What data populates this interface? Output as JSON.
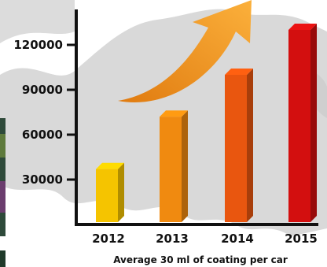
{
  "chart_data": {
    "type": "bar",
    "categories": [
      "2012",
      "2013",
      "2014",
      "2015"
    ],
    "values": [
      37000,
      72000,
      100000,
      130000
    ],
    "title": "",
    "xlabel": "Average 30 ml of coating per car",
    "ylabel": "",
    "yticks": [
      "30000",
      "60000",
      "90000",
      "120000"
    ],
    "ylim": [
      0,
      150000
    ],
    "grid": false,
    "legend": "none",
    "bar_colors": [
      "#f5c400",
      "#f08a10",
      "#e9560f",
      "#d30f0f"
    ],
    "background_color": "#d9d9d9",
    "arrow_color": "#f4a21e"
  }
}
